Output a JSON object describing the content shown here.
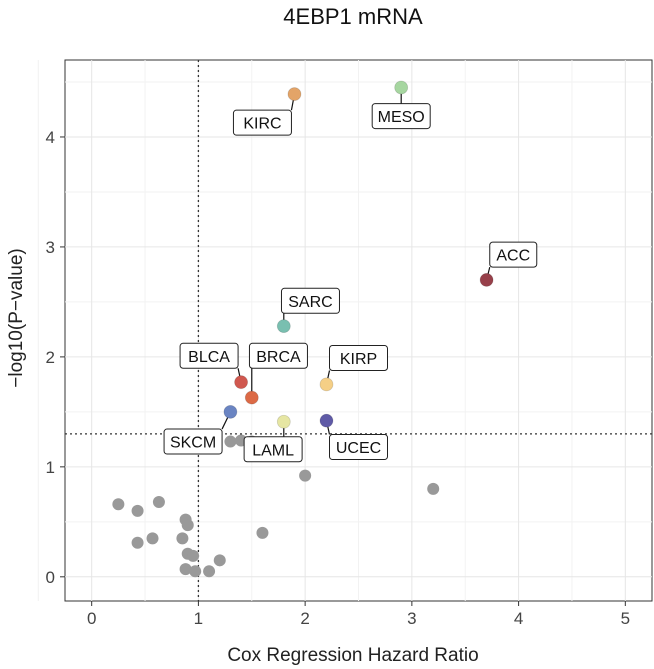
{
  "chart_data": {
    "type": "scatter",
    "title": "4EBP1 mRNA",
    "xlabel": "Cox Regression Hazard Ratio",
    "ylabel": "−log10(P−value)",
    "xlim": [
      -0.25,
      5.25
    ],
    "ylim": [
      -0.22,
      4.7
    ],
    "xticks": [
      "0",
      "1",
      "2",
      "3",
      "4",
      "5"
    ],
    "yticks": [
      "0",
      "1",
      "2",
      "3",
      "4"
    ],
    "grid": true,
    "reference_lines": {
      "x": 1,
      "y": 1.3,
      "style": "dotted"
    },
    "labeled_points": [
      {
        "name": "KIRC",
        "x": 1.9,
        "y": 4.39,
        "color": "#e3a468",
        "label_x": 1.6,
        "label_y": 4.13
      },
      {
        "name": "MESO",
        "x": 2.9,
        "y": 4.45,
        "color": "#a6d6a0",
        "label_x": 2.9,
        "label_y": 4.19
      },
      {
        "name": "ACC",
        "x": 3.7,
        "y": 2.7,
        "color": "#97404a",
        "label_x": 3.95,
        "label_y": 2.93
      },
      {
        "name": "SARC",
        "x": 1.8,
        "y": 2.28,
        "color": "#79bfb0",
        "label_x": 2.05,
        "label_y": 2.51
      },
      {
        "name": "KIRP",
        "x": 2.2,
        "y": 1.75,
        "color": "#f5cf86",
        "label_x": 2.5,
        "label_y": 1.99
      },
      {
        "name": "BLCA",
        "x": 1.4,
        "y": 1.77,
        "color": "#d0584f",
        "label_x": 1.1,
        "label_y": 2.01
      },
      {
        "name": "BRCA",
        "x": 1.5,
        "y": 1.63,
        "color": "#dc6a46",
        "label_x": 1.75,
        "label_y": 2.01
      },
      {
        "name": "SKCM",
        "x": 1.3,
        "y": 1.5,
        "color": "#6a84c2",
        "label_x": 0.95,
        "label_y": 1.23
      },
      {
        "name": "LAML",
        "x": 1.8,
        "y": 1.41,
        "color": "#e6e6a3",
        "label_x": 1.7,
        "label_y": 1.16
      },
      {
        "name": "UCEC",
        "x": 2.2,
        "y": 1.42,
        "color": "#5f5aa6",
        "label_x": 2.5,
        "label_y": 1.18
      }
    ],
    "other_points": [
      {
        "x": 0.25,
        "y": 0.66
      },
      {
        "x": 0.43,
        "y": 0.6
      },
      {
        "x": 0.63,
        "y": 0.68
      },
      {
        "x": 0.88,
        "y": 0.52
      },
      {
        "x": 0.9,
        "y": 0.47
      },
      {
        "x": 0.85,
        "y": 0.35
      },
      {
        "x": 0.57,
        "y": 0.35
      },
      {
        "x": 0.43,
        "y": 0.31
      },
      {
        "x": 0.9,
        "y": 0.21
      },
      {
        "x": 0.95,
        "y": 0.19
      },
      {
        "x": 1.2,
        "y": 0.15
      },
      {
        "x": 0.88,
        "y": 0.07
      },
      {
        "x": 0.97,
        "y": 0.05
      },
      {
        "x": 1.1,
        "y": 0.05
      },
      {
        "x": 1.6,
        "y": 0.4
      },
      {
        "x": 2.0,
        "y": 0.92
      },
      {
        "x": 3.2,
        "y": 0.8
      },
      {
        "x": 1.3,
        "y": 1.23
      },
      {
        "x": 1.4,
        "y": 1.24
      },
      {
        "x": 1.5,
        "y": 1.23
      }
    ],
    "other_point_color": "#999999"
  }
}
